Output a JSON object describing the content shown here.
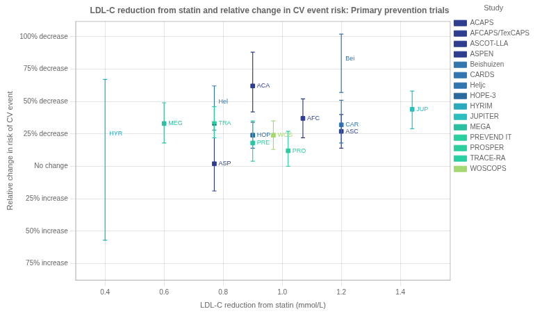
{
  "chart_data": {
    "type": "scatter",
    "title": "LDL-C reduction from statin and relative change in CV event risk: Primary prevention trials",
    "x_label": "LDL-C reduction from statin (mmol/L)",
    "y_label": "Relative change in risk of CV event",
    "series": [
      {
        "name": "ACAPS",
        "color": "#2e3d8f",
        "marker": "square",
        "x": [
          0.9
        ],
        "values": [
          0.62
        ],
        "y_lo": [
          0.88
        ],
        "y_hi": [
          0.42
        ],
        "point_labels": [
          "ACA"
        ]
      },
      {
        "name": "AFCAPS/TexCAPS",
        "color": "#2e3d8f",
        "marker": "square",
        "x": [
          1.07
        ],
        "values": [
          0.37
        ],
        "y_lo": [
          0.52
        ],
        "y_hi": [
          0.22
        ],
        "point_labels": [
          "AFC"
        ]
      },
      {
        "name": "ASCOT-LLA",
        "color": "#2e3d8f",
        "marker": "square",
        "x": [
          1.2
        ],
        "values": [
          0.27
        ],
        "y_lo": [
          0.4
        ],
        "y_hi": [
          0.14
        ],
        "point_labels": [
          "ASC"
        ]
      },
      {
        "name": "ASPEN",
        "color": "#2e3d8f",
        "marker": "square",
        "x": [
          0.77
        ],
        "values": [
          0.02
        ],
        "y_lo": [
          0.32
        ],
        "y_hi": [
          -0.19
        ],
        "point_labels": [
          "ASP"
        ]
      },
      {
        "name": "Beishuizen",
        "color": "#3276b0",
        "marker": "none",
        "x": [
          1.2
        ],
        "values": [
          0.83
        ],
        "y_lo": [
          1.02
        ],
        "y_hi": [
          0.57
        ],
        "point_labels": [
          "Bei"
        ]
      },
      {
        "name": "CARDS",
        "color": "#3276b0",
        "marker": "square",
        "x": [
          1.2
        ],
        "values": [
          0.32
        ],
        "y_lo": [
          0.51
        ],
        "y_hi": [
          0.18
        ],
        "point_labels": [
          "CAR"
        ]
      },
      {
        "name": "Heljc",
        "color": "#3276b0",
        "marker": "none",
        "x": [
          0.77
        ],
        "values": [
          0.5
        ],
        "y_lo": [
          0.62
        ],
        "y_hi": [
          0.28
        ],
        "point_labels": [
          "Hel"
        ]
      },
      {
        "name": "HOPE-3",
        "color": "#2b6a9e",
        "marker": "square",
        "x": [
          0.9
        ],
        "values": [
          0.24
        ],
        "y_lo": [
          0.34
        ],
        "y_hi": [
          0.14
        ],
        "point_labels": [
          "HOP"
        ]
      },
      {
        "name": "HYRIM",
        "color": "#2aaabe",
        "marker": "none",
        "x": [
          0.4
        ],
        "values": [
          0.25
        ],
        "y_lo": [
          0.67
        ],
        "y_hi": [
          -0.57
        ],
        "point_labels": [
          "HYR"
        ]
      },
      {
        "name": "JUPITER",
        "color": "#2abebe",
        "marker": "square",
        "x": [
          1.44
        ],
        "values": [
          0.44
        ],
        "y_lo": [
          0.58
        ],
        "y_hi": [
          0.29
        ],
        "point_labels": [
          "JUP"
        ]
      },
      {
        "name": "MEGA",
        "color": "#2abfa0",
        "marker": "square",
        "x": [
          0.6
        ],
        "values": [
          0.33
        ],
        "y_lo": [
          0.49
        ],
        "y_hi": [
          0.18
        ],
        "point_labels": [
          "MEG"
        ]
      },
      {
        "name": "PREVEND IT",
        "color": "#2acfa0",
        "marker": "square",
        "x": [
          0.9
        ],
        "values": [
          0.18
        ],
        "y_lo": [
          0.35
        ],
        "y_hi": [
          0.04
        ],
        "point_labels": [
          "PRE"
        ]
      },
      {
        "name": "PROSPER",
        "color": "#2acfa0",
        "marker": "square",
        "x": [
          1.02
        ],
        "values": [
          0.12
        ],
        "y_lo": [
          0.27
        ],
        "y_hi": [
          0.0
        ],
        "point_labels": [
          "PRO"
        ]
      },
      {
        "name": "TRACE-RA",
        "color": "#2acfa0",
        "marker": "square",
        "x": [
          0.77
        ],
        "values": [
          0.33
        ],
        "y_lo": [
          0.46
        ],
        "y_hi": [
          0.22
        ],
        "point_labels": [
          "TRA"
        ]
      },
      {
        "name": "WOSCOPS",
        "color": "#a5d870",
        "marker": "square",
        "x": [
          0.97
        ],
        "values": [
          0.24
        ],
        "y_lo": [
          0.35
        ],
        "y_hi": [
          0.13
        ],
        "point_labels": [
          "WOS"
        ]
      }
    ],
    "xlim": [
      0.3,
      1.57
    ],
    "xticks": [
      0.4,
      0.6,
      0.8,
      {
        "value": 1.0,
        "label": "1.0"
      },
      1.2,
      1.4
    ],
    "ylim": [
      -0.88,
      1.12
    ],
    "yticks": [
      {
        "value": 1.0,
        "label": "100% decrease"
      },
      {
        "value": 0.75,
        "label": "75% decrease"
      },
      {
        "value": 0.5,
        "label": "50% decrease"
      },
      {
        "value": 0.25,
        "label": "25% decrease"
      },
      {
        "value": 0.0,
        "label": "No change"
      },
      {
        "value": -0.25,
        "label": "25% increase"
      },
      {
        "value": -0.5,
        "label": "50% increase"
      },
      {
        "value": -0.75,
        "label": "75% increase"
      }
    ],
    "grid": true,
    "legend": "right",
    "legend_title": "Study"
  }
}
